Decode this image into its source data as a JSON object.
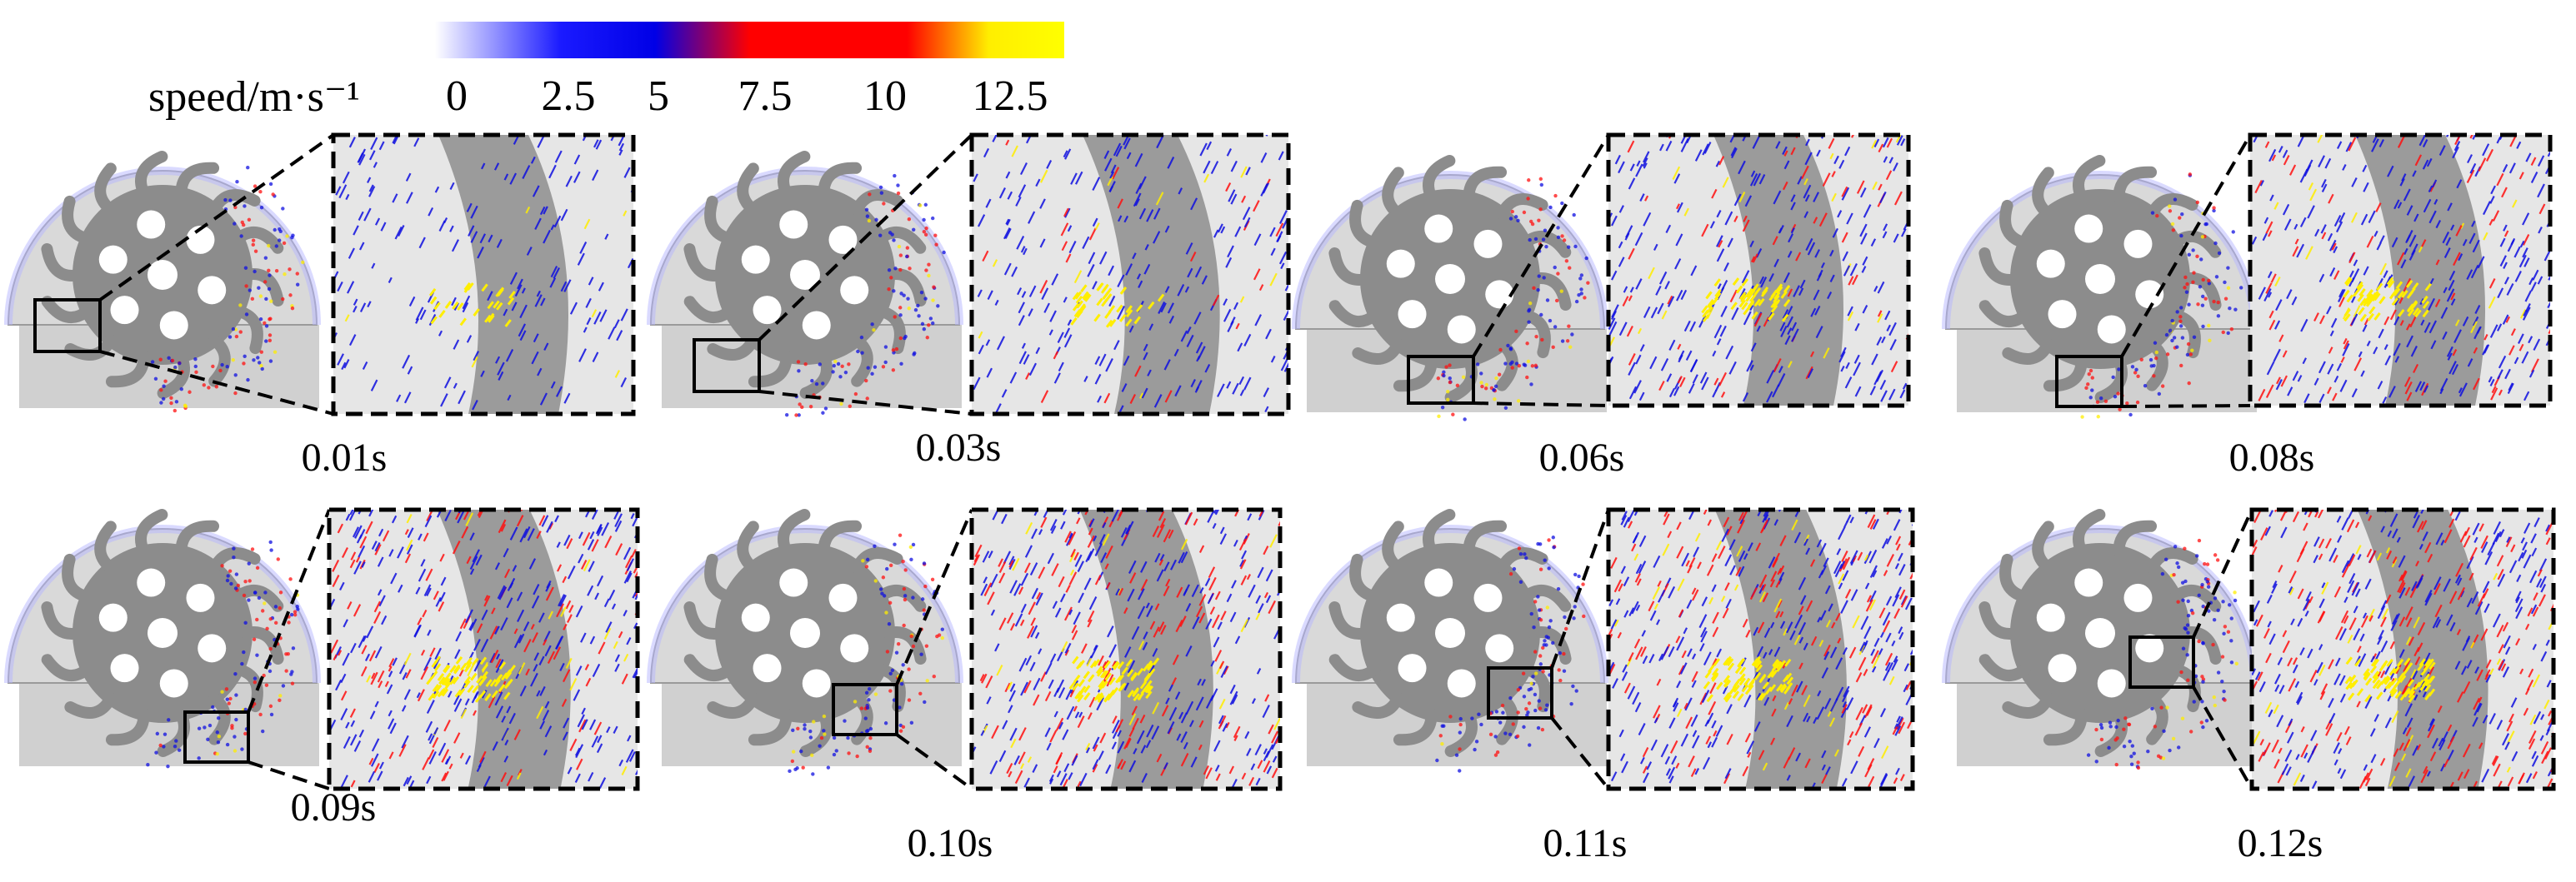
{
  "legend": {
    "title": "speed/m·s⁻¹",
    "ticks": [
      "0",
      "2.5",
      "5",
      "7.5",
      "10",
      "12.5"
    ],
    "colors": [
      "#ffffff",
      "#0000ff",
      "#ff0000",
      "#ffff00"
    ]
  },
  "panels": [
    {
      "time": "0.01s"
    },
    {
      "time": "0.03s"
    },
    {
      "time": "0.06s"
    },
    {
      "time": "0.08s"
    },
    {
      "time": "0.09s"
    },
    {
      "time": "0.10s"
    },
    {
      "time": "0.11s"
    },
    {
      "time": "0.12s"
    }
  ],
  "colors": {
    "wheel": "#8c8c8c",
    "housing": "#d9d9d9",
    "ground": "#d0d0d0",
    "low_speed": "#1010e0",
    "mid_speed": "#ff1010",
    "high_speed": "#ffee00"
  }
}
